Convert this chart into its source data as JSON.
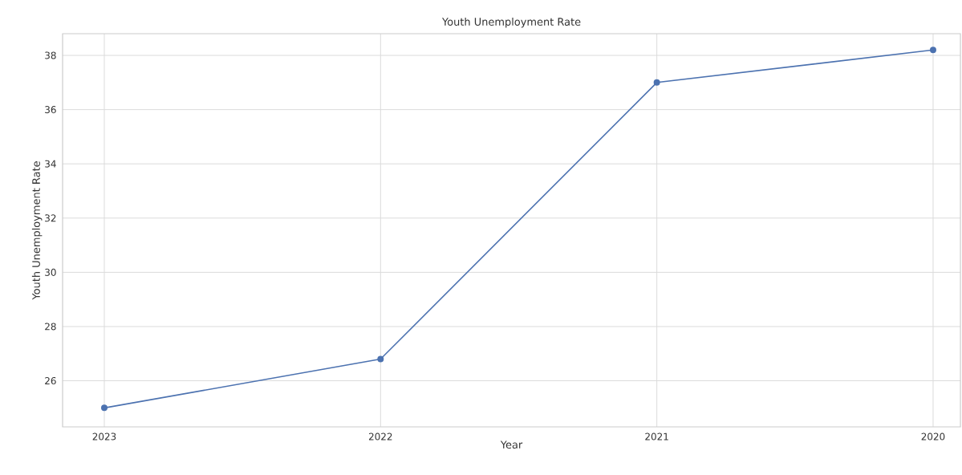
{
  "chart_data": {
    "type": "line",
    "title": "Youth Unemployment Rate",
    "xlabel": "Year",
    "ylabel": "Youth Unemployment Rate",
    "categories": [
      "2023",
      "2022",
      "2021",
      "2020"
    ],
    "series": [
      {
        "color": "#4c72b0",
        "values": [
          25.0,
          26.8,
          37.0,
          38.2
        ]
      }
    ],
    "ylim": [
      24.3,
      38.8
    ],
    "yticks": [
      26,
      28,
      30,
      32,
      34,
      36,
      38
    ],
    "grid": true,
    "marker": "circle",
    "line_style": "solid"
  }
}
